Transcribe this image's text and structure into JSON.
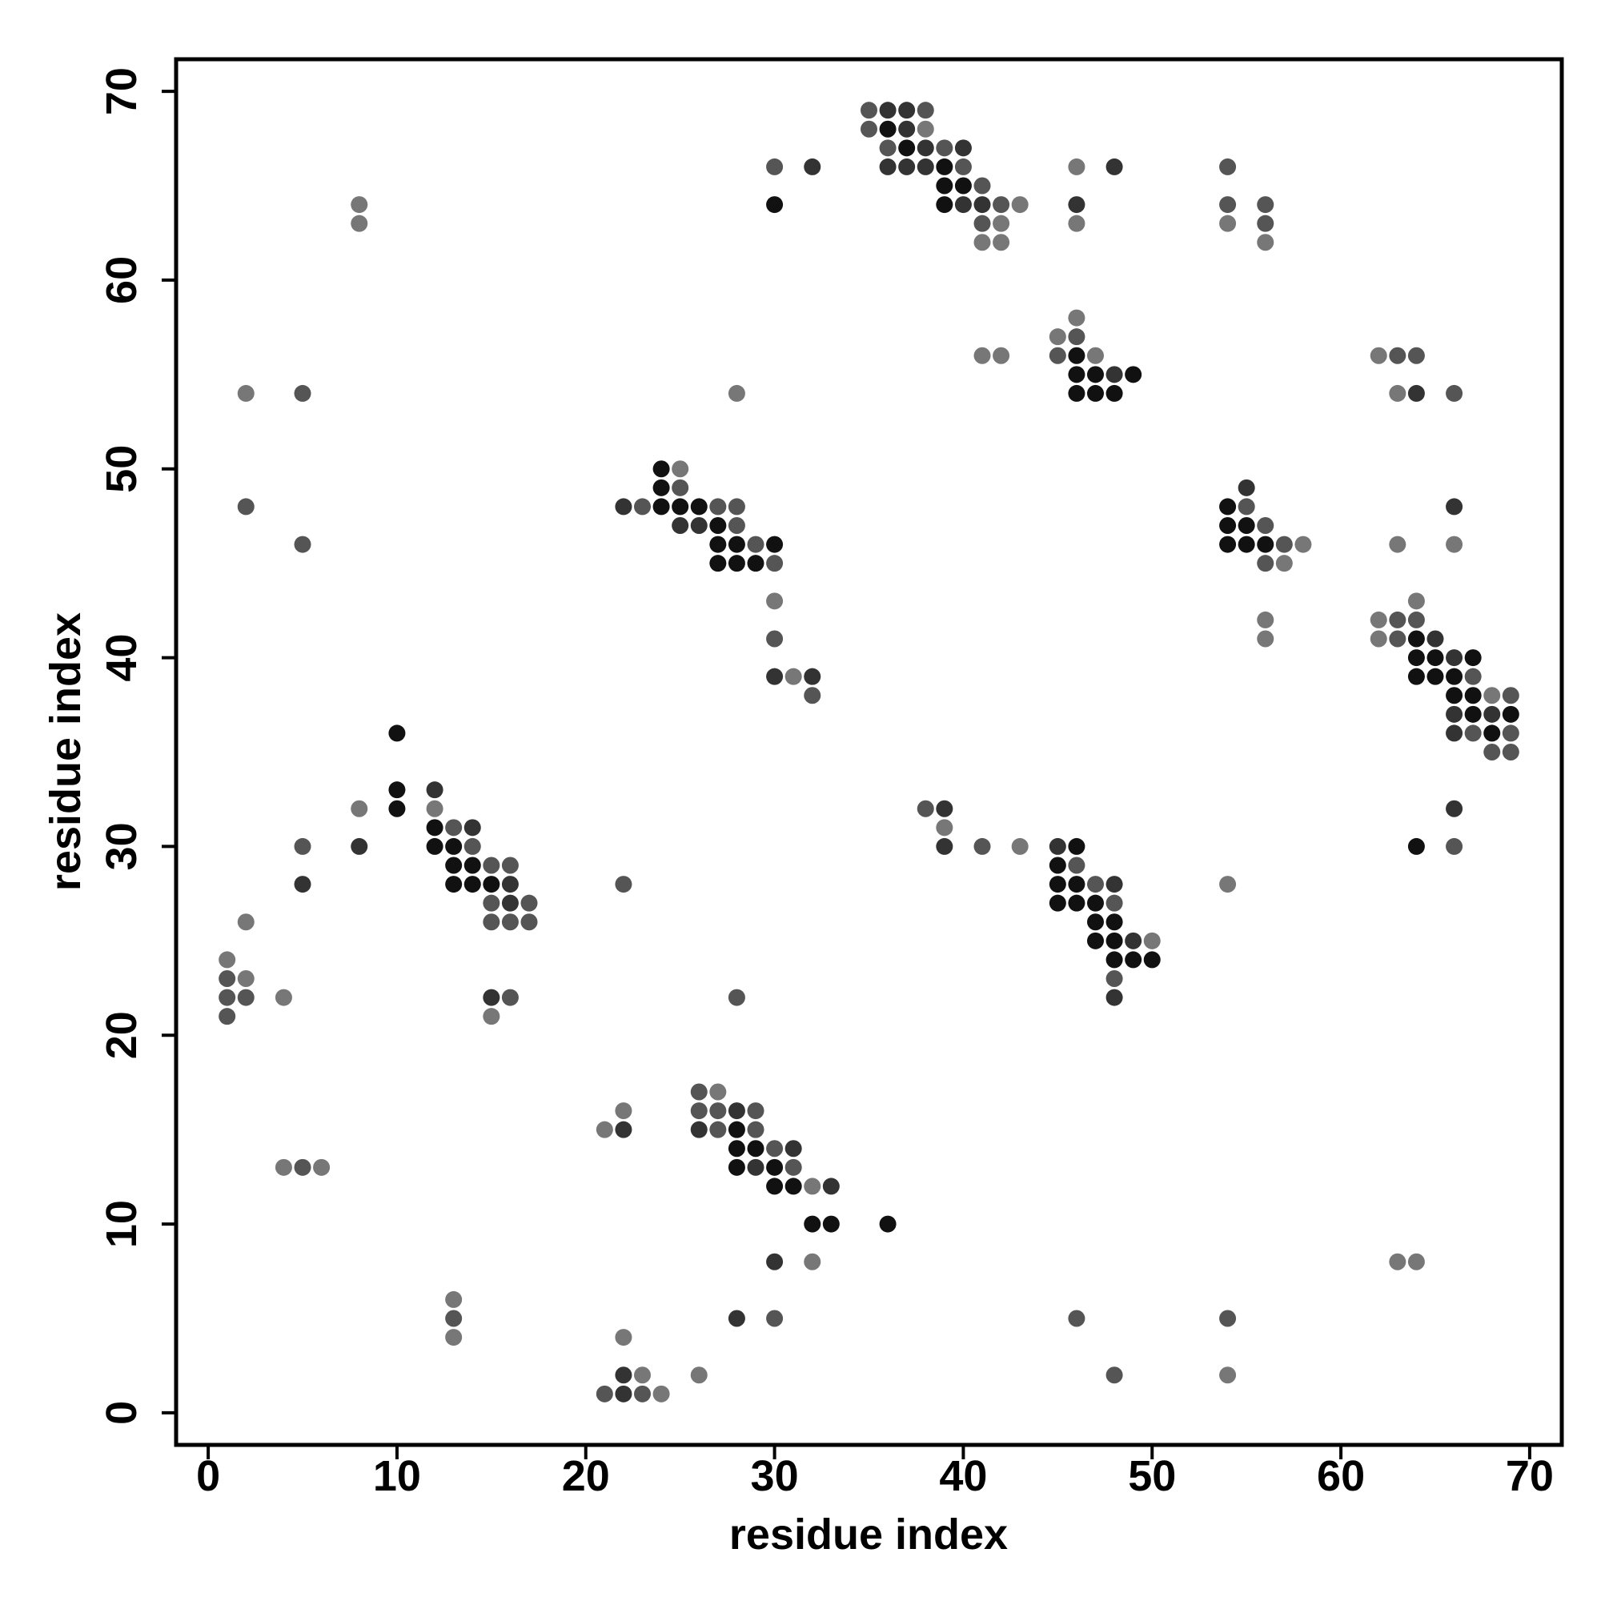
{
  "chart_data": {
    "type": "scatter",
    "x_label": "residue index",
    "y_label": "residue index",
    "xlim": [
      -1.7,
      71.7
    ],
    "ylim": [
      -1.7,
      71.7
    ],
    "xticks": [
      0,
      10,
      20,
      30,
      40,
      50,
      60,
      70
    ],
    "yticks": [
      0,
      10,
      20,
      30,
      40,
      50,
      60,
      70
    ],
    "series": [
      {
        "color": "#111111",
        "x": [
          36,
          37,
          39,
          39,
          40,
          30,
          39,
          46,
          46,
          47,
          49,
          46,
          47,
          48,
          24,
          24,
          24,
          25,
          26,
          54,
          27,
          54,
          55,
          27,
          28,
          30,
          54,
          55,
          56,
          27,
          28,
          29,
          64,
          64,
          65,
          67,
          64,
          65,
          66,
          66,
          67,
          67,
          69,
          10,
          68,
          10,
          10,
          12,
          12,
          13,
          46,
          64,
          13,
          14,
          45,
          13,
          14,
          15,
          45,
          46,
          45,
          46,
          47,
          47,
          48,
          47,
          48,
          48,
          49,
          50,
          28,
          28,
          29,
          28,
          30,
          30,
          31,
          32,
          33,
          36
        ],
        "y": [
          68,
          67,
          66,
          65,
          65,
          64,
          64,
          56,
          55,
          55,
          55,
          54,
          54,
          54,
          50,
          49,
          48,
          48,
          48,
          48,
          47,
          47,
          47,
          46,
          46,
          46,
          46,
          46,
          46,
          45,
          45,
          45,
          41,
          40,
          40,
          40,
          39,
          39,
          39,
          38,
          38,
          37,
          37,
          36,
          36,
          33,
          32,
          31,
          30,
          30,
          30,
          30,
          29,
          29,
          29,
          28,
          28,
          28,
          28,
          28,
          27,
          27,
          27,
          26,
          26,
          25,
          25,
          24,
          24,
          24,
          15,
          14,
          14,
          13,
          13,
          12,
          12,
          10,
          10,
          10
        ]
      },
      {
        "color": "#333333",
        "x": [
          36,
          37,
          37,
          38,
          40,
          32,
          36,
          37,
          38,
          48,
          40,
          41,
          46,
          48,
          64,
          55,
          22,
          66,
          25,
          26,
          65,
          66,
          30,
          32,
          66,
          68,
          66,
          12,
          39,
          66,
          14,
          8,
          39,
          45,
          5,
          16,
          48,
          16,
          49,
          15,
          48,
          28,
          22,
          26,
          31,
          29,
          33,
          30,
          28,
          22,
          22
        ],
        "y": [
          69,
          69,
          68,
          67,
          67,
          66,
          66,
          66,
          66,
          66,
          64,
          64,
          64,
          55,
          54,
          49,
          48,
          48,
          47,
          47,
          41,
          40,
          39,
          39,
          37,
          37,
          36,
          33,
          32,
          32,
          31,
          30,
          30,
          30,
          28,
          28,
          28,
          27,
          25,
          22,
          22,
          16,
          15,
          15,
          14,
          13,
          12,
          8,
          5,
          2,
          1
        ]
      },
      {
        "color": "#555555",
        "x": [
          35,
          38,
          35,
          36,
          39,
          30,
          40,
          54,
          41,
          42,
          54,
          56,
          41,
          56,
          46,
          45,
          63,
          64,
          5,
          66,
          25,
          2,
          23,
          27,
          28,
          55,
          28,
          56,
          5,
          29,
          57,
          30,
          56,
          63,
          64,
          30,
          63,
          67,
          32,
          69,
          67,
          69,
          68,
          69,
          38,
          13,
          5,
          14,
          41,
          66,
          15,
          16,
          46,
          22,
          47,
          15,
          17,
          48,
          15,
          16,
          17,
          1,
          48,
          1,
          2,
          16,
          28,
          1,
          26,
          26,
          27,
          29,
          27,
          29,
          30,
          5,
          31,
          13,
          30,
          46,
          54,
          48,
          21,
          23
        ],
        "y": [
          69,
          69,
          68,
          67,
          67,
          66,
          66,
          66,
          65,
          64,
          64,
          64,
          63,
          63,
          57,
          56,
          56,
          56,
          54,
          54,
          49,
          48,
          48,
          48,
          48,
          48,
          47,
          47,
          46,
          46,
          46,
          45,
          45,
          42,
          42,
          41,
          41,
          39,
          38,
          38,
          36,
          36,
          35,
          35,
          32,
          31,
          30,
          30,
          30,
          30,
          29,
          29,
          29,
          28,
          28,
          27,
          27,
          27,
          26,
          26,
          26,
          23,
          23,
          22,
          22,
          22,
          22,
          21,
          17,
          16,
          16,
          16,
          15,
          15,
          14,
          13,
          13,
          5,
          5,
          5,
          5,
          2,
          1,
          1
        ]
      },
      {
        "color": "#777777",
        "x": [
          38,
          46,
          8,
          43,
          8,
          42,
          46,
          54,
          41,
          42,
          56,
          46,
          45,
          41,
          42,
          47,
          62,
          2,
          28,
          63,
          25,
          58,
          63,
          66,
          57,
          30,
          64,
          56,
          62,
          56,
          62,
          31,
          68,
          8,
          12,
          39,
          43,
          54,
          2,
          50,
          1,
          2,
          4,
          15,
          27,
          22,
          21,
          4,
          6,
          32,
          32,
          63,
          64,
          13,
          13,
          22,
          23,
          26,
          54,
          24
        ],
        "y": [
          68,
          66,
          64,
          64,
          63,
          63,
          63,
          63,
          62,
          62,
          62,
          58,
          57,
          56,
          56,
          56,
          56,
          54,
          54,
          54,
          50,
          46,
          46,
          46,
          45,
          43,
          43,
          42,
          42,
          41,
          41,
          39,
          38,
          32,
          32,
          31,
          30,
          28,
          26,
          25,
          24,
          23,
          22,
          21,
          17,
          16,
          15,
          13,
          13,
          12,
          8,
          8,
          8,
          6,
          4,
          4,
          2,
          2,
          2,
          1
        ]
      }
    ]
  }
}
